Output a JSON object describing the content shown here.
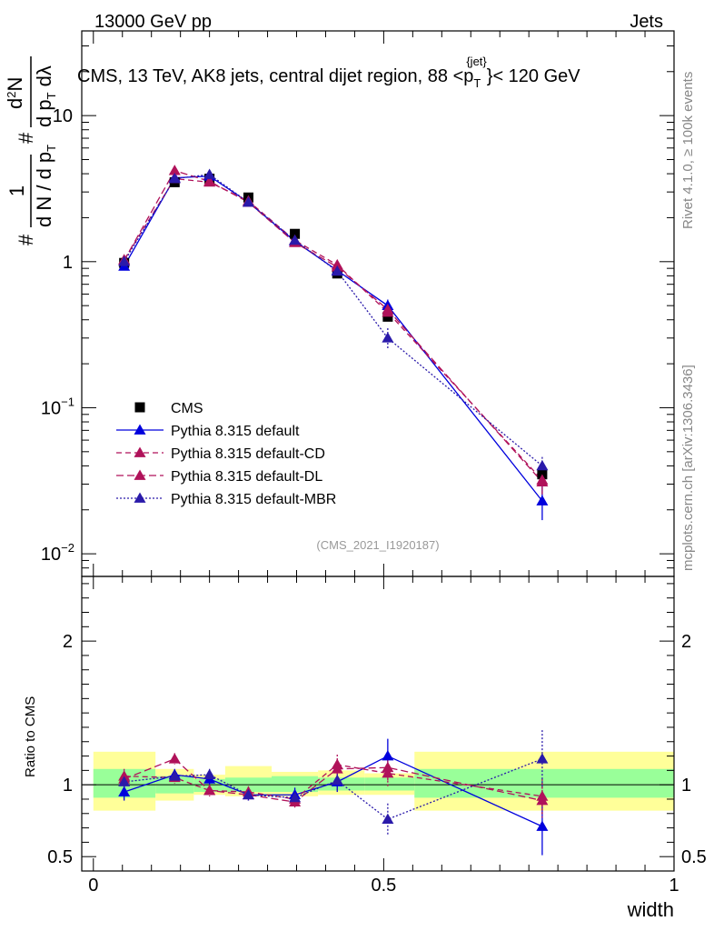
{
  "header": {
    "left": "13000 GeV pp",
    "right": "Jets"
  },
  "title": {
    "main": "CMS, 13 TeV, AK8 jets, central dijet region, 88 <p",
    "sub": "T",
    "sup": "{jet}",
    "tail": "}< 120 GeV"
  },
  "ylabel_top": {
    "hash1": "#",
    "frac1_num": "1",
    "frac1_den": "d N / d p",
    "frac1_den_sub": "T",
    "hash2": "#",
    "frac2_num": "d",
    "frac2_num_sup": "2",
    "frac2_num_tail": "N",
    "frac2_den": "d p",
    "frac2_den_sub": "T",
    "frac2_den_tail": " dλ"
  },
  "side_labels": {
    "rivet": "Rivet 4.1.0, ≥ 100k events",
    "mcplots": "mcplots.cern.ch [arXiv:1306.3436]"
  },
  "analysis_id": "(CMS_2021_I1920187)",
  "ratio_ylabel": "Ratio to CMS",
  "xlabel": "width",
  "colors": {
    "data": "#000000",
    "default": "#0000dd",
    "cd": "#b0125a",
    "dl": "#b0125a",
    "mbr": "#2a1aaa",
    "band_outer": "#ffff99",
    "band_inner": "#99ff99"
  },
  "chart_data": [
    {
      "type": "scatter",
      "panel": "main",
      "title": "CMS, 13 TeV, AK8 jets, central dijet region, 88 <pT{jet}< 120 GeV",
      "xlim": [
        -0.02,
        1.0
      ],
      "ylim": [
        0.007,
        38
      ],
      "yscale": "log",
      "x_ticks": [
        0,
        0.5,
        1
      ],
      "y_ticks": [
        {
          "value": 0.01,
          "base": "10",
          "exp": "−2"
        },
        {
          "value": 0.1,
          "base": "10",
          "exp": "−1"
        },
        {
          "value": 1,
          "base": "1",
          "exp": ""
        },
        {
          "value": 10,
          "base": "10",
          "exp": ""
        }
      ],
      "x_edges": [
        0.0,
        0.107,
        0.173,
        0.227,
        0.307,
        0.387,
        0.467,
        0.553,
        1.0
      ],
      "x": [
        0.053,
        0.14,
        0.2,
        0.267,
        0.347,
        0.42,
        0.507,
        0.773
      ],
      "series": [
        {
          "name": "CMS",
          "style": "data",
          "values": [
            0.98,
            3.5,
            3.7,
            2.75,
            1.55,
            0.83,
            0.42,
            0.035
          ],
          "err": [
            0,
            0,
            0,
            0,
            0,
            0,
            0,
            0
          ]
        },
        {
          "name": "Pythia 8.315 default",
          "style": "default",
          "values": [
            0.93,
            3.75,
            3.85,
            2.55,
            1.38,
            0.87,
            0.5,
            0.023
          ],
          "err": [
            0.05,
            0.12,
            0.12,
            0.07,
            0.05,
            0.05,
            0.05,
            0.006
          ]
        },
        {
          "name": "Pythia 8.315 default-CD",
          "style": "cd",
          "values": [
            1.03,
            3.7,
            3.5,
            2.6,
            1.4,
            0.95,
            0.45,
            0.032
          ],
          "err": [
            0.05,
            0.12,
            0.12,
            0.07,
            0.05,
            0.05,
            0.05,
            0.006
          ]
        },
        {
          "name": "Pythia 8.315 default-DL",
          "style": "dl",
          "values": [
            1.02,
            4.2,
            3.55,
            2.55,
            1.35,
            0.92,
            0.47,
            0.031
          ],
          "err": [
            0.05,
            0.12,
            0.12,
            0.07,
            0.05,
            0.05,
            0.05,
            0.006
          ]
        },
        {
          "name": "Pythia 8.315 default-MBR",
          "style": "mbr",
          "values": [
            1.0,
            3.7,
            3.95,
            2.55,
            1.4,
            0.86,
            0.3,
            0.04
          ],
          "err": [
            0.05,
            0.12,
            0.12,
            0.07,
            0.05,
            0.05,
            0.05,
            0.006
          ]
        }
      ]
    },
    {
      "type": "scatter",
      "panel": "ratio",
      "ylabel": "Ratio to CMS",
      "xlabel": "width",
      "xlim": [
        -0.02,
        1.0
      ],
      "ylim": [
        0.4,
        2.45
      ],
      "y_ticks": [
        0.5,
        1,
        2
      ],
      "x_ticks": [
        0,
        0.5,
        1
      ],
      "x_edges": [
        0.0,
        0.107,
        0.173,
        0.227,
        0.307,
        0.387,
        0.467,
        0.553,
        1.0
      ],
      "band_outer": [
        [
          0.82,
          1.23
        ],
        [
          0.89,
          1.11
        ],
        [
          0.93,
          1.07
        ],
        [
          0.92,
          1.13
        ],
        [
          0.92,
          1.09
        ],
        [
          0.93,
          1.1
        ],
        [
          0.93,
          1.08
        ],
        [
          0.82,
          1.23
        ]
      ],
      "band_inner": [
        [
          0.91,
          1.11
        ],
        [
          0.94,
          1.06
        ],
        [
          0.95,
          1.04
        ],
        [
          0.95,
          1.05
        ],
        [
          0.95,
          1.06
        ],
        [
          0.96,
          1.05
        ],
        [
          0.96,
          1.05
        ],
        [
          0.91,
          1.11
        ]
      ],
      "x": [
        0.053,
        0.14,
        0.2,
        0.267,
        0.347,
        0.42,
        0.507,
        0.773
      ],
      "series": [
        {
          "name": "Pythia 8.315 default",
          "style": "default",
          "values": [
            0.95,
            1.07,
            1.04,
            0.93,
            0.93,
            1.02,
            1.2,
            0.71
          ],
          "err": [
            0.06,
            0.04,
            0.04,
            0.04,
            0.05,
            0.07,
            0.12,
            0.2
          ]
        },
        {
          "name": "Pythia 8.315 default-CD",
          "style": "cd",
          "values": [
            1.06,
            1.05,
            0.96,
            0.95,
            0.9,
            1.14,
            1.08,
            0.92
          ],
          "err": [
            0.05,
            0.04,
            0.04,
            0.04,
            0.05,
            0.07,
            0.1,
            0.12
          ]
        },
        {
          "name": "Pythia 8.315 default-DL",
          "style": "dl",
          "values": [
            1.04,
            1.18,
            0.96,
            0.93,
            0.88,
            1.11,
            1.12,
            0.89
          ],
          "err": [
            0.05,
            0.04,
            0.04,
            0.04,
            0.05,
            0.07,
            0.1,
            0.12
          ]
        },
        {
          "name": "Pythia 8.315 default-MBR",
          "style": "mbr",
          "values": [
            1.02,
            1.06,
            1.07,
            0.93,
            0.91,
            1.03,
            0.76,
            1.18
          ],
          "err": [
            0.05,
            0.04,
            0.04,
            0.04,
            0.05,
            0.07,
            0.11,
            0.2
          ]
        }
      ]
    }
  ]
}
